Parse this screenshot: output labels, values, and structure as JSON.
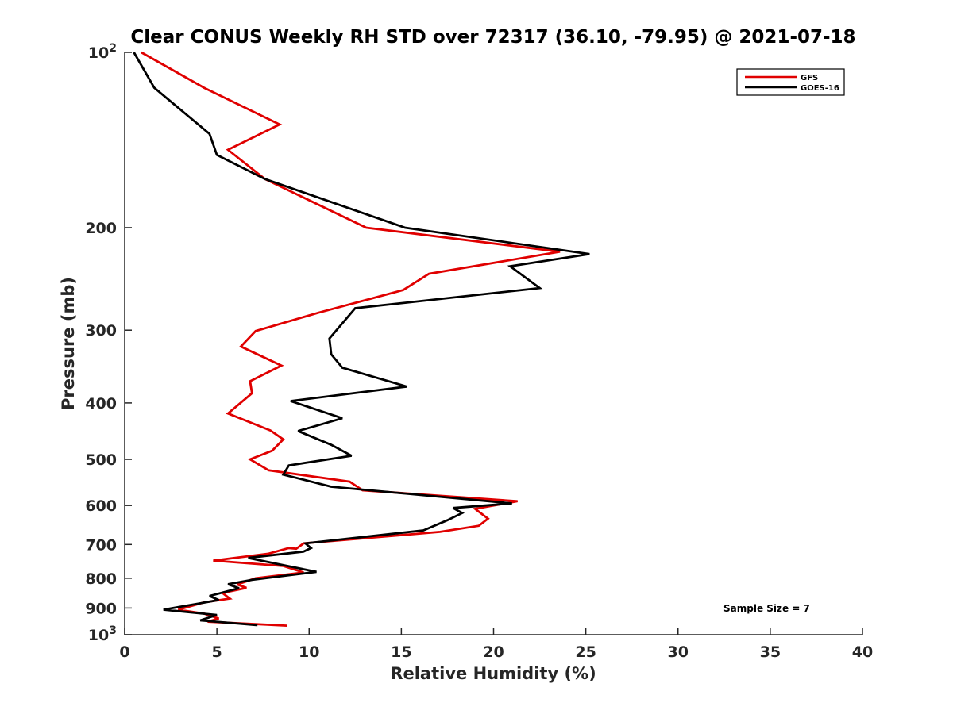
{
  "chart_data": {
    "type": "line",
    "title": "Clear CONUS Weekly RH STD over 72317 (36.10, -79.95) @ 2021-07-18",
    "xlabel": "Relative Humidity (%)",
    "ylabel": "Pressure (mb)",
    "xlim": [
      0,
      40
    ],
    "ylim": [
      100,
      1000
    ],
    "y_scale": "log",
    "y_reversed": true,
    "x_ticks": [
      0,
      5,
      10,
      15,
      20,
      25,
      30,
      35,
      40
    ],
    "x_tick_labels": [
      "0",
      "5",
      "10",
      "15",
      "20",
      "25",
      "30",
      "35",
      "40"
    ],
    "y_ticks": [
      100,
      200,
      300,
      400,
      500,
      600,
      700,
      800,
      900,
      1000
    ],
    "y_tick_labels": [
      {
        "base": "10",
        "exp": "2"
      },
      {
        "base": "200"
      },
      {
        "base": "300"
      },
      {
        "base": "400"
      },
      {
        "base": "500"
      },
      {
        "base": "600"
      },
      {
        "base": "700"
      },
      {
        "base": "800"
      },
      {
        "base": "900"
      },
      {
        "base": "10",
        "exp": "3"
      }
    ],
    "grid": false,
    "legend_position": "top-right",
    "annotation": "Sample Size = 7",
    "series": [
      {
        "name": "GFS",
        "color": "#e00000",
        "points": [
          [
            0.9,
            100
          ],
          [
            4.3,
            115
          ],
          [
            8.4,
            133
          ],
          [
            5.6,
            147
          ],
          [
            7.6,
            165
          ],
          [
            13.1,
            200
          ],
          [
            23.6,
            220
          ],
          [
            16.5,
            240
          ],
          [
            15.1,
            256
          ],
          [
            10.5,
            280
          ],
          [
            7.1,
            301
          ],
          [
            6.3,
            320
          ],
          [
            8.5,
            345
          ],
          [
            6.8,
            367
          ],
          [
            6.9,
            385
          ],
          [
            5.6,
            417
          ],
          [
            7.9,
            446
          ],
          [
            8.6,
            462
          ],
          [
            8.0,
            483
          ],
          [
            6.8,
            500
          ],
          [
            7.8,
            522
          ],
          [
            12.2,
            546
          ],
          [
            12.9,
            565
          ],
          [
            21.3,
            590
          ],
          [
            19.0,
            608
          ],
          [
            19.7,
            632
          ],
          [
            19.2,
            650
          ],
          [
            17.1,
            666
          ],
          [
            9.7,
            697
          ],
          [
            9.3,
            712
          ],
          [
            8.9,
            710
          ],
          [
            7.8,
            726
          ],
          [
            4.8,
            746
          ],
          [
            8.6,
            762
          ],
          [
            9.7,
            782
          ],
          [
            7.1,
            800
          ],
          [
            6.1,
            820
          ],
          [
            6.6,
            831
          ],
          [
            5.3,
            848
          ],
          [
            5.7,
            867
          ],
          [
            4.3,
            880
          ],
          [
            2.9,
            906
          ],
          [
            4.3,
            920
          ],
          [
            5.1,
            938
          ],
          [
            4.5,
            950
          ],
          [
            8.8,
            965
          ]
        ]
      },
      {
        "name": "GOES-16",
        "color": "#000000",
        "points": [
          [
            0.5,
            100
          ],
          [
            1.6,
            115
          ],
          [
            4.6,
            138
          ],
          [
            5.0,
            150
          ],
          [
            7.6,
            165
          ],
          [
            15.2,
            200
          ],
          [
            25.2,
            222
          ],
          [
            20.9,
            233
          ],
          [
            22.5,
            254
          ],
          [
            12.5,
            275
          ],
          [
            11.1,
            310
          ],
          [
            11.2,
            330
          ],
          [
            11.8,
            348
          ],
          [
            15.3,
            375
          ],
          [
            9.0,
            397
          ],
          [
            11.8,
            425
          ],
          [
            9.4,
            447
          ],
          [
            11.2,
            472
          ],
          [
            12.3,
            493
          ],
          [
            8.9,
            512
          ],
          [
            8.6,
            531
          ],
          [
            11.2,
            557
          ],
          [
            21.0,
            595
          ],
          [
            17.8,
            606
          ],
          [
            18.3,
            618
          ],
          [
            17.5,
            636
          ],
          [
            16.2,
            662
          ],
          [
            9.8,
            697
          ],
          [
            10.1,
            710
          ],
          [
            9.7,
            720
          ],
          [
            6.7,
            738
          ],
          [
            8.9,
            763
          ],
          [
            10.4,
            780
          ],
          [
            6.9,
            805
          ],
          [
            5.6,
            819
          ],
          [
            6.2,
            832
          ],
          [
            4.6,
            858
          ],
          [
            5.1,
            872
          ],
          [
            2.1,
            906
          ],
          [
            5.0,
            925
          ],
          [
            4.1,
            945
          ],
          [
            7.2,
            963
          ]
        ]
      }
    ]
  }
}
